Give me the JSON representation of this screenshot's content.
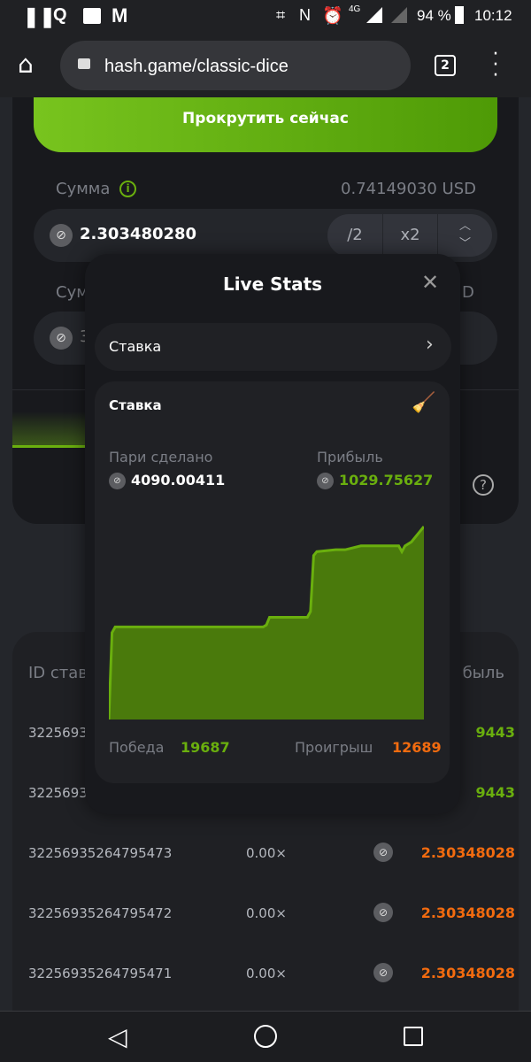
{
  "status_bar": {
    "battery": "94 %",
    "time": "10:12",
    "network": "4G"
  },
  "browser": {
    "url": "hash.game/classic-dice",
    "tab_count": "2"
  },
  "game": {
    "spin_button": "Прокрутить сейчас",
    "amount_label": "Сумма",
    "amount_usd": "0.74149030 USD",
    "amount_value": "2.303480280",
    "half": "/2",
    "double": "x2",
    "amount2_label": "Сум",
    "amount2_usd_tail": "D",
    "amount2_value_head": "3"
  },
  "table": {
    "col_id": "ID став",
    "col_profit": "быль",
    "rows": [
      {
        "id": "3225693",
        "mult": "",
        "profit": "9443",
        "win": true
      },
      {
        "id": "3225693",
        "mult": "",
        "profit": "9443",
        "win": true
      },
      {
        "id": "32256935264795473",
        "mult": "0.00×",
        "profit": "2.30348028",
        "win": false
      },
      {
        "id": "32256935264795472",
        "mult": "0.00×",
        "profit": "2.30348028",
        "win": false
      },
      {
        "id": "32256935264795471",
        "mult": "0.00×",
        "profit": "2.30348028",
        "win": false
      }
    ]
  },
  "modal": {
    "title": "Live Stats",
    "selector": "Ставка",
    "card_title": "Ставка",
    "wagered_label": "Пари сделано",
    "wagered": "4090.00411",
    "profit_label": "Прибыль",
    "profit": "1029.75627",
    "wins_label": "Победа",
    "wins": "19687",
    "losses_label": "Проигрыш",
    "losses": "12689"
  },
  "colors": {
    "accent": "#6aaf0e",
    "win": "#6aaf0e",
    "loss": "#f26b0f",
    "chart_fill": "#4a7a0c"
  },
  "chart_data": {
    "type": "area",
    "x": [
      0,
      1,
      2,
      49,
      50,
      51,
      63,
      64,
      65,
      66,
      72,
      75,
      80,
      92,
      93,
      94,
      96,
      100
    ],
    "values": [
      0,
      45,
      48,
      48,
      49,
      53,
      53,
      56,
      85,
      87,
      88,
      88,
      90,
      90,
      87,
      90,
      92,
      100
    ],
    "note_units": "relative cumulative profit level, percent of chart height",
    "grid": false
  }
}
